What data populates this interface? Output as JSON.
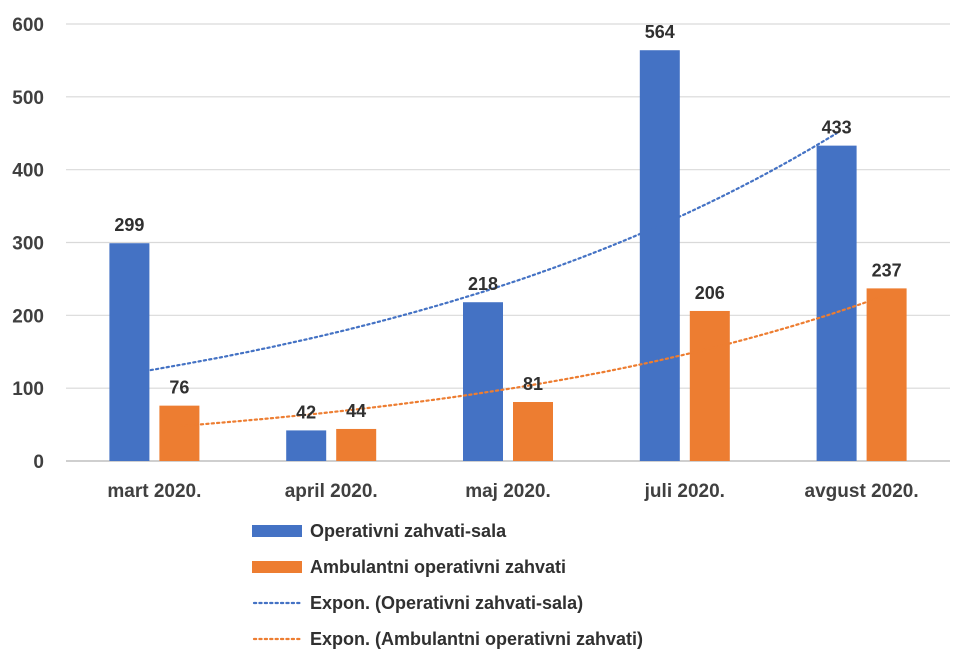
{
  "chart_data": {
    "type": "bar",
    "categories": [
      "mart 2020.",
      "april 2020.",
      "maj 2020.",
      "juli 2020.",
      "avgust 2020."
    ],
    "series": [
      {
        "name": "Operativni zahvati-sala",
        "values": [
          299,
          42,
          218,
          564,
          433
        ],
        "color": "#4472C4"
      },
      {
        "name": "Ambulantni operativni zahvati",
        "values": [
          76,
          44,
          81,
          206,
          237
        ],
        "color": "#ED7D31"
      }
    ],
    "trendlines": [
      {
        "name": "Expon. (Operativni zahvati-sala)",
        "type": "exponential",
        "series_index": 0,
        "color": "#4472C4",
        "start": 120,
        "end": 450
      },
      {
        "name": "Expon. (Ambulantni operativni zahvati)",
        "type": "exponential",
        "series_index": 1,
        "color": "#ED7D31",
        "start": 48,
        "end": 228
      }
    ],
    "y_ticks": [
      "0",
      "100",
      "200",
      "300",
      "400",
      "500",
      "600"
    ],
    "ylim": [
      0,
      600
    ],
    "grid": true,
    "legend_position": "bottom",
    "data_labels": true
  }
}
